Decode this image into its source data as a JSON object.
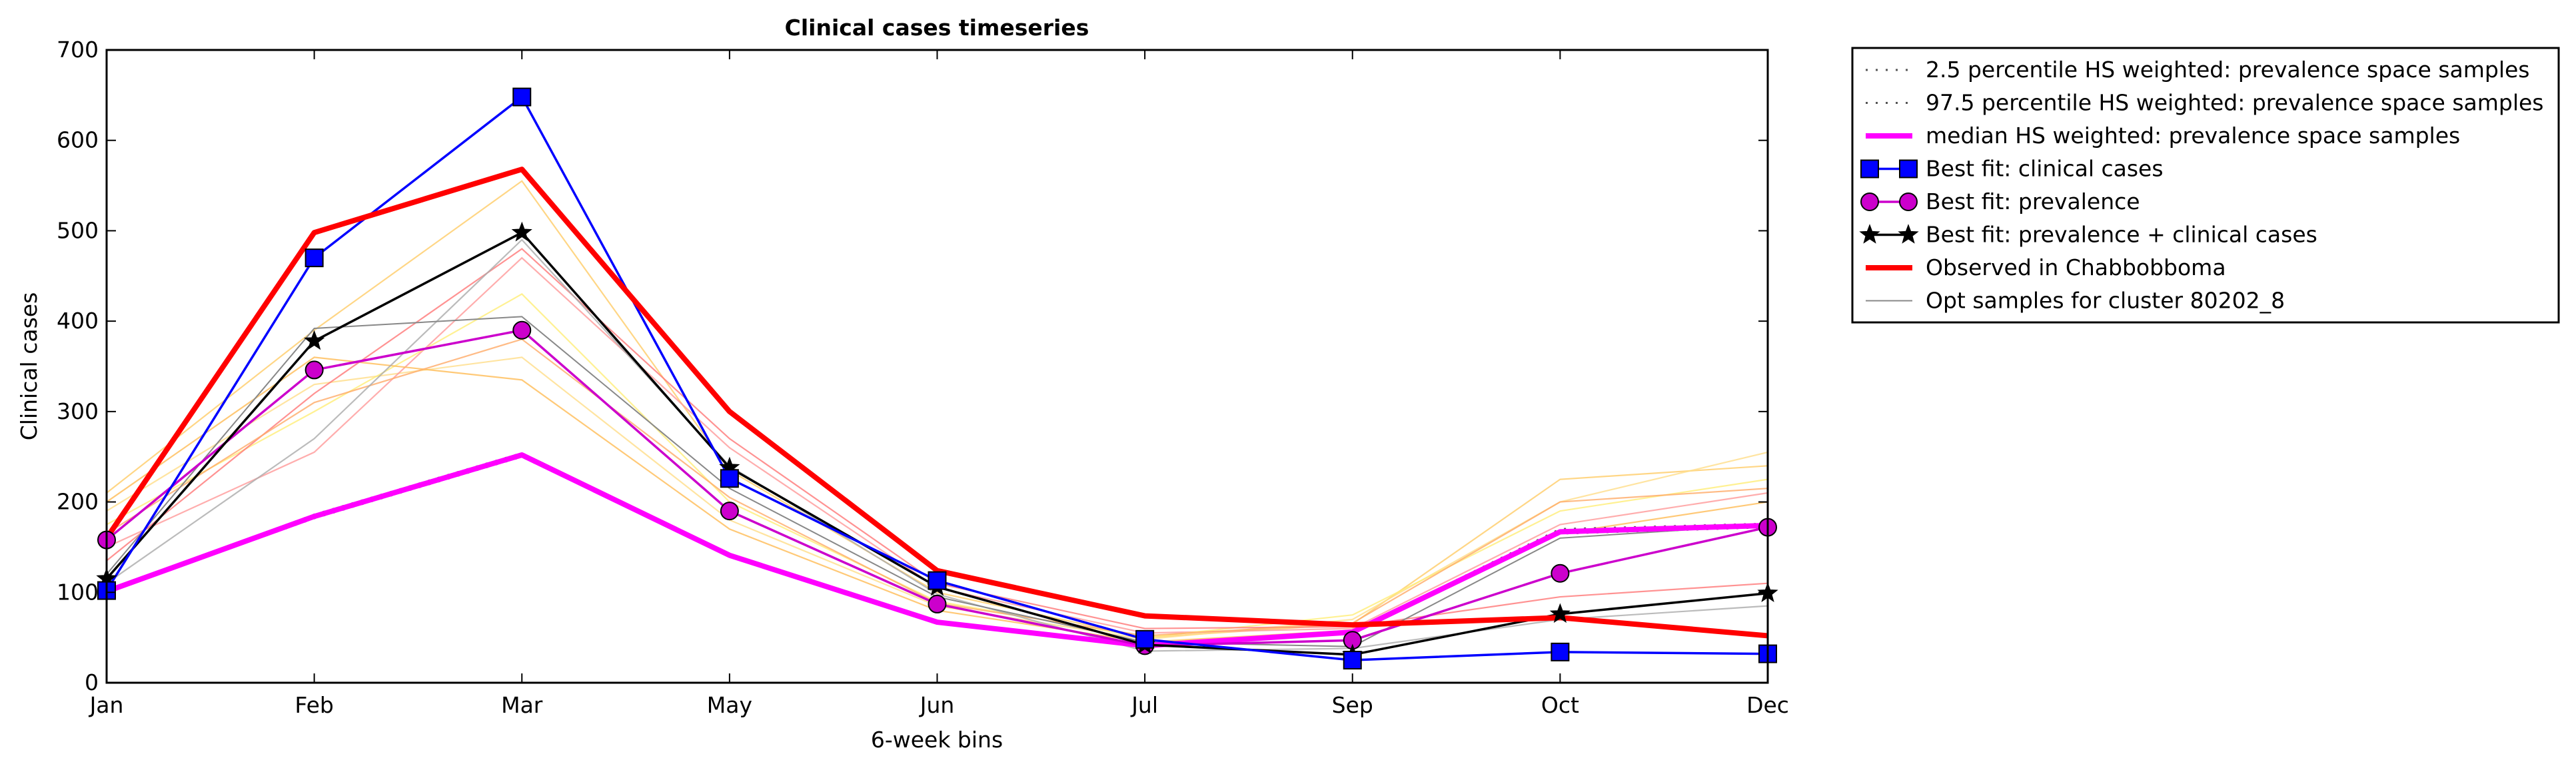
{
  "chart_data": {
    "type": "line",
    "title": "Clinical cases timeseries",
    "xlabel": "6-week bins",
    "ylabel": "Clinical cases",
    "categories": [
      "Jan",
      "Feb",
      "Mar",
      "May",
      "Jun",
      "Jul",
      "Sep",
      "Oct",
      "Dec"
    ],
    "ylim": [
      0,
      700
    ],
    "yticks": [
      0,
      100,
      200,
      300,
      400,
      500,
      600,
      700
    ],
    "grid": false,
    "legend_position": "outside-top-right",
    "series": [
      {
        "name": "2.5 percentile HS weighted: prevalence space samples",
        "style": "dotted",
        "color": "#555555",
        "marker": "none",
        "values": [
          100,
          182,
          250,
          140,
          66,
          40,
          55,
          165,
          172
        ]
      },
      {
        "name": "97.5 percentile HS weighted: prevalence space samples",
        "style": "dotted",
        "color": "#555555",
        "marker": "none",
        "values": [
          102,
          186,
          254,
          142,
          68,
          42,
          57,
          170,
          176
        ]
      },
      {
        "name": "median HS weighted: prevalence space samples",
        "style": "solid-thick",
        "color": "#ff00ff",
        "marker": "none",
        "values": [
          101,
          184,
          252,
          141,
          67,
          41,
          56,
          167,
          174
        ]
      },
      {
        "name": "Best fit: clinical cases",
        "style": "solid",
        "color": "#0000ff",
        "marker": "square",
        "values": [
          102,
          470,
          648,
          226,
          113,
          48,
          25,
          34,
          32
        ]
      },
      {
        "name": "Best fit: prevalence",
        "style": "solid",
        "color": "#cc00cc",
        "marker": "circle",
        "values": [
          158,
          346,
          390,
          190,
          87,
          41,
          47,
          121,
          172
        ]
      },
      {
        "name": "Best fit: prevalence + clinical cases",
        "style": "solid",
        "color": "#000000",
        "marker": "star",
        "values": [
          115,
          378,
          498,
          238,
          106,
          42,
          31,
          76,
          99
        ]
      },
      {
        "name": "Observed in Chabbobboma",
        "style": "solid-thick",
        "color": "#ff0000",
        "marker": "none",
        "values": [
          160,
          498,
          568,
          300,
          124,
          74,
          64,
          72,
          52
        ]
      },
      {
        "name": "Opt samples for cluster 80202_8",
        "style": "thin",
        "color": "#888888",
        "marker": "none",
        "values": [
          120,
          392,
          405,
          215,
          95,
          45,
          40,
          160,
          175
        ]
      }
    ],
    "background_samples": [
      {
        "color": "#ffcc66",
        "values": [
          210,
          390,
          555,
          235,
          100,
          50,
          65,
          225,
          240
        ]
      },
      {
        "color": "#ffdd88",
        "values": [
          190,
          330,
          360,
          180,
          85,
          48,
          70,
          200,
          255
        ]
      },
      {
        "color": "#ff9999",
        "values": [
          150,
          255,
          470,
          260,
          105,
          55,
          60,
          175,
          210
        ]
      },
      {
        "color": "#ffee77",
        "values": [
          175,
          300,
          430,
          200,
          90,
          50,
          75,
          190,
          225
        ]
      },
      {
        "color": "#ff7777",
        "values": [
          135,
          320,
          480,
          270,
          110,
          60,
          62,
          95,
          110
        ]
      },
      {
        "color": "#ffbb55",
        "values": [
          200,
          360,
          335,
          170,
          80,
          45,
          58,
          165,
          200
        ]
      },
      {
        "color": "#ffaa66",
        "values": [
          165,
          310,
          380,
          205,
          88,
          52,
          66,
          200,
          215
        ]
      },
      {
        "color": "#aaaaaa",
        "values": [
          110,
          270,
          490,
          240,
          98,
          35,
          38,
          70,
          85
        ]
      }
    ]
  }
}
